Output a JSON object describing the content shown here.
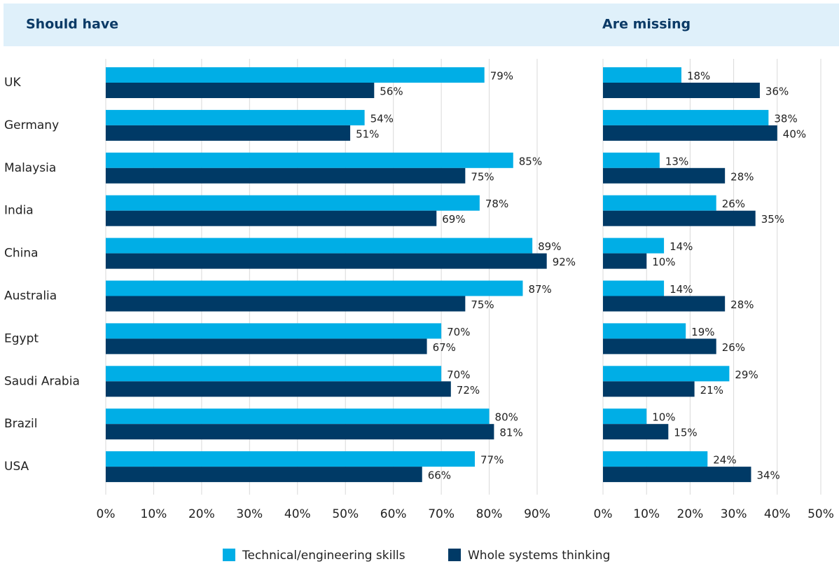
{
  "chart_data": [
    {
      "type": "bar",
      "orientation": "horizontal",
      "title": "Should have",
      "categories": [
        "UK",
        "Germany",
        "Malaysia",
        "India",
        "China",
        "Australia",
        "Egypt",
        "Saudi Arabia",
        "Brazil",
        "USA"
      ],
      "series": [
        {
          "name": "Technical/engineering skills",
          "color": "#00aee6",
          "values": [
            79,
            54,
            85,
            78,
            89,
            87,
            70,
            70,
            80,
            77
          ],
          "value_labels": [
            "79%",
            "54%",
            "85%",
            "78%",
            "89%",
            "87%",
            "70%",
            "70%",
            "80%",
            "77%"
          ]
        },
        {
          "name": "Whole systems thinking",
          "color": "#003a66",
          "values": [
            56,
            51,
            75,
            69,
            92,
            75,
            67,
            72,
            81,
            66
          ],
          "value_labels": [
            "56%",
            "51%",
            "75%",
            "69%",
            "92%",
            "75%",
            "67%",
            "72%",
            "81%",
            "66%"
          ]
        }
      ],
      "xlim": [
        0,
        90
      ],
      "xticks": [
        {
          "value": 0,
          "label": "0%"
        },
        {
          "value": 10,
          "label": "10%"
        },
        {
          "value": 20,
          "label": "20%"
        },
        {
          "value": 30,
          "label": "30%"
        },
        {
          "value": 40,
          "label": "40%"
        },
        {
          "value": 50,
          "label": "50%"
        },
        {
          "value": 60,
          "label": "60%"
        },
        {
          "value": 70,
          "label": "70%"
        },
        {
          "value": 80,
          "label": "80%"
        },
        {
          "value": 90,
          "label": "90%"
        }
      ],
      "grid": true
    },
    {
      "type": "bar",
      "orientation": "horizontal",
      "title": "Are missing",
      "series": [
        {
          "color": "#00aee6",
          "values": [
            18,
            38,
            13,
            26,
            14,
            14,
            19,
            29,
            10,
            24
          ],
          "value_labels": [
            "18%",
            "38%",
            "13%",
            "26%",
            "14%",
            "14%",
            "19%",
            "29%",
            "10%",
            "24%"
          ]
        },
        {
          "color": "#003a66",
          "values": [
            36,
            40,
            28,
            35,
            10,
            28,
            26,
            21,
            15,
            34
          ],
          "value_labels": [
            "36%",
            "40%",
            "28%",
            "35%",
            "10%",
            "28%",
            "26%",
            "21%",
            "15%",
            "34%"
          ]
        }
      ],
      "xlim": [
        0,
        50
      ],
      "xticks": [
        {
          "value": 0,
          "label": "0%"
        },
        {
          "value": 10,
          "label": "10%"
        },
        {
          "value": 20,
          "label": "20%"
        },
        {
          "value": 30,
          "label": "30%"
        },
        {
          "value": 40,
          "label": "40%"
        },
        {
          "value": 50,
          "label": "50%"
        }
      ],
      "grid": true
    }
  ]
}
